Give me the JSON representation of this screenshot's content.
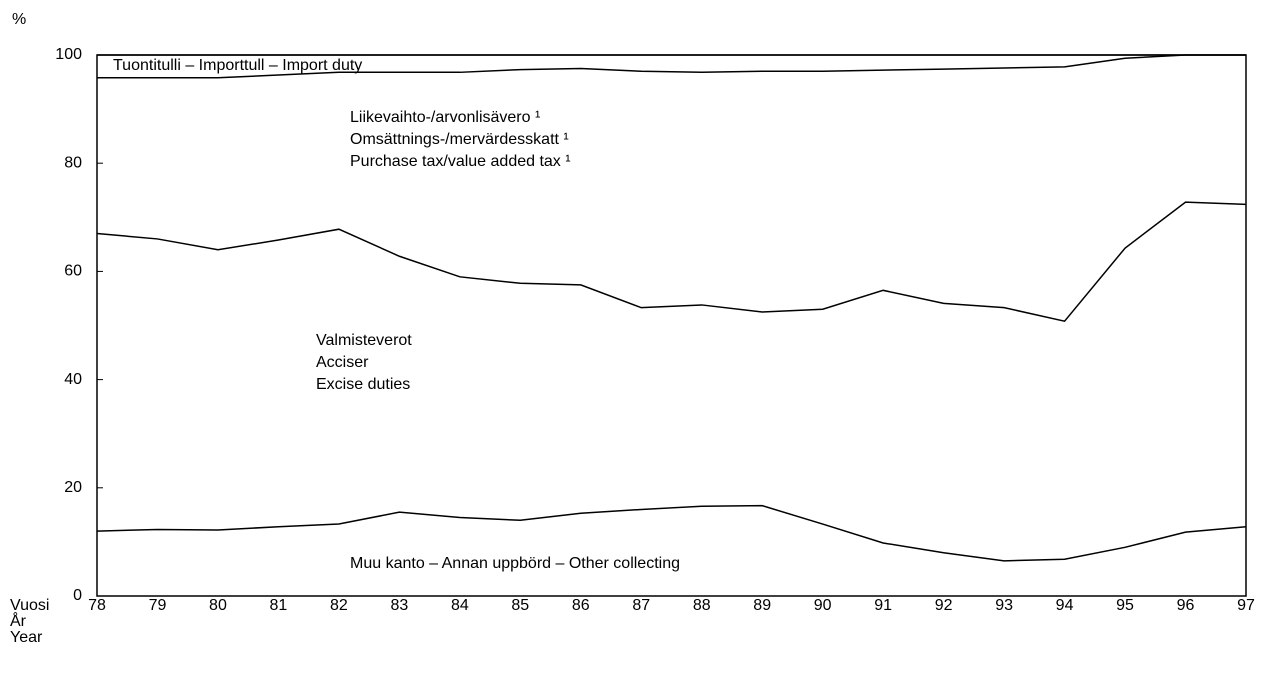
{
  "chart_data": {
    "type": "stacked_line",
    "y_label": "%",
    "x_label": [
      "Vuosi",
      "År",
      "Year"
    ],
    "categories": [
      "78",
      "79",
      "80",
      "81",
      "82",
      "83",
      "84",
      "85",
      "86",
      "87",
      "88",
      "89",
      "90",
      "91",
      "92",
      "93",
      "94",
      "95",
      "96",
      "97"
    ],
    "ylim": [
      0,
      100
    ],
    "yticks": [
      0,
      20,
      40,
      60,
      80,
      100
    ],
    "color": "#000000",
    "series": [
      {
        "name": [
          "Muu kanto – Annan uppbörd – Other collecting"
        ],
        "values": [
          12,
          12.3,
          12.2,
          12.8,
          13.3,
          15.5,
          14.5,
          14,
          15.3,
          16,
          16.6,
          16.7,
          13.3,
          9.8,
          8,
          6.5,
          6.8,
          9,
          11.8,
          12.8
        ]
      },
      {
        "name": [
          "Valmisteverot",
          "Acciser",
          "Excise duties"
        ],
        "values": [
          55,
          53.7,
          51.8,
          53,
          54.5,
          47.3,
          44.5,
          43.8,
          42.2,
          37.3,
          37.2,
          35.8,
          39.7,
          46.7,
          46.1,
          46.8,
          44,
          55.3,
          61,
          59.6
        ]
      },
      {
        "name": [
          "Liikevaihto-/arvonlisävero ¹",
          "Omsättnings-/mervärdesskatt ¹",
          "Purchase tax/value added tax ¹"
        ],
        "values": [
          28.8,
          29.8,
          31.8,
          30.5,
          29,
          34,
          37.8,
          39.5,
          40,
          43.7,
          43,
          44.5,
          44,
          40.7,
          43.3,
          44.3,
          47,
          35.1,
          27.2,
          27.6
        ]
      },
      {
        "name": [
          "Tuontitulli – Importtull – Import duty"
        ],
        "values": [
          4.2,
          4.2,
          4.2,
          3.7,
          3.2,
          3.2,
          3.2,
          2.7,
          2.5,
          3,
          3.2,
          3,
          3,
          2.8,
          2.6,
          2.4,
          2.2,
          0.6,
          0,
          0
        ]
      }
    ]
  }
}
